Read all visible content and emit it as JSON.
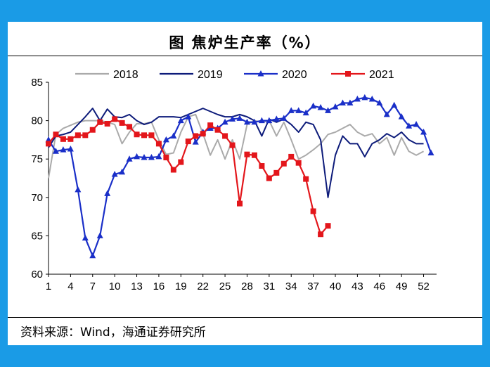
{
  "title": "图 焦炉生产率（%）",
  "source": "资料来源：Wind，海通证券研究所",
  "chart_data": {
    "type": "line",
    "title": "图 焦炉生产率（%）",
    "xlabel": "",
    "ylabel": "",
    "ylim": [
      60,
      85
    ],
    "xlim": [
      1,
      53
    ],
    "yticks": [
      60,
      65,
      70,
      75,
      80,
      85
    ],
    "xticks": [
      1,
      4,
      7,
      10,
      13,
      16,
      19,
      22,
      25,
      28,
      31,
      34,
      37,
      40,
      43,
      46,
      49,
      52
    ],
    "legend_position": "top",
    "grid": false,
    "series": [
      {
        "name": "2018",
        "color": "#aaaaaa",
        "marker": "none",
        "x": [
          1,
          2,
          3,
          4,
          5,
          6,
          7,
          8,
          9,
          10,
          11,
          12,
          13,
          14,
          15,
          16,
          17,
          18,
          19,
          20,
          21,
          22,
          23,
          24,
          25,
          26,
          27,
          28,
          29,
          30,
          31,
          32,
          33,
          34,
          35,
          36,
          37,
          38,
          39,
          40,
          41,
          42,
          43,
          44,
          45,
          46,
          47,
          48,
          49,
          50,
          51,
          52
        ],
        "values": [
          72.5,
          78.2,
          79.0,
          79.4,
          79.8,
          80.0,
          80.0,
          80.0,
          79.8,
          79.5,
          77.0,
          78.5,
          79.6,
          79.6,
          79.8,
          77.5,
          75.6,
          75.8,
          78.5,
          80.5,
          80.8,
          78.3,
          75.5,
          77.5,
          75.0,
          77.5,
          75.0,
          79.5,
          80.0,
          79.8,
          80.0,
          78.0,
          79.8,
          77.5,
          75.0,
          75.5,
          76.2,
          77.0,
          78.2,
          78.5,
          79.0,
          79.5,
          78.5,
          78.0,
          78.3,
          77.0,
          77.8,
          75.5,
          77.8,
          76.0,
          75.5,
          76.0
        ]
      },
      {
        "name": "2019",
        "color": "#0d1b7a",
        "marker": "none",
        "x": [
          1,
          2,
          3,
          4,
          5,
          6,
          7,
          8,
          9,
          10,
          11,
          12,
          13,
          14,
          15,
          16,
          17,
          18,
          19,
          20,
          21,
          22,
          23,
          24,
          25,
          26,
          27,
          28,
          29,
          30,
          31,
          32,
          33,
          34,
          35,
          36,
          37,
          38,
          39,
          40,
          41,
          42,
          43,
          44,
          45,
          46,
          47,
          48,
          49,
          50,
          51,
          52
        ],
        "values": [
          76.5,
          78.0,
          78.2,
          78.5,
          79.5,
          80.5,
          81.6,
          80.0,
          81.5,
          80.5,
          80.4,
          80.8,
          80.0,
          79.5,
          79.8,
          80.5,
          80.5,
          80.5,
          80.4,
          80.8,
          81.2,
          81.6,
          81.2,
          80.8,
          80.5,
          80.5,
          80.8,
          80.5,
          80.0,
          78.0,
          80.2,
          79.8,
          80.2,
          79.5,
          78.5,
          79.8,
          79.5,
          77.5,
          70.0,
          75.5,
          78.0,
          77.0,
          77.0,
          75.3,
          77.0,
          77.5,
          78.3,
          77.8,
          78.5,
          77.5,
          77.0,
          77.0
        ]
      },
      {
        "name": "2020",
        "color": "#1a2fc8",
        "marker": "triangle",
        "x": [
          1,
          2,
          3,
          4,
          5,
          6,
          7,
          8,
          9,
          10,
          11,
          12,
          13,
          14,
          15,
          16,
          17,
          18,
          19,
          20,
          21,
          22,
          23,
          24,
          25,
          26,
          27,
          28,
          29,
          30,
          31,
          32,
          33,
          34,
          35,
          36,
          37,
          38,
          39,
          40,
          41,
          42,
          43,
          44,
          45,
          46,
          47,
          48,
          49,
          50,
          51,
          52,
          53
        ],
        "values": [
          77.5,
          76.0,
          76.2,
          76.3,
          71.0,
          64.7,
          62.4,
          65.0,
          70.5,
          73.0,
          73.3,
          75.0,
          75.3,
          75.2,
          75.2,
          75.3,
          77.5,
          78.0,
          80.0,
          80.5,
          77.2,
          78.5,
          79.0,
          79.0,
          79.8,
          80.2,
          80.3,
          79.8,
          79.8,
          80.0,
          80.0,
          80.2,
          80.3,
          81.3,
          81.3,
          81.0,
          81.9,
          81.7,
          81.3,
          81.8,
          82.3,
          82.3,
          82.8,
          83.0,
          82.8,
          82.3,
          80.8,
          82.0,
          80.5,
          79.3,
          79.5,
          78.5,
          75.8
        ]
      },
      {
        "name": "2021",
        "color": "#e3161b",
        "marker": "square",
        "x": [
          1,
          2,
          3,
          4,
          5,
          6,
          7,
          8,
          9,
          10,
          11,
          12,
          13,
          14,
          15,
          16,
          17,
          18,
          19,
          20,
          21,
          22,
          23,
          24,
          25,
          26,
          27,
          28,
          29,
          30,
          31,
          32,
          33,
          34,
          35,
          36,
          37,
          38,
          39
        ],
        "values": [
          77.0,
          78.2,
          77.6,
          77.6,
          78.1,
          78.1,
          78.8,
          79.8,
          79.6,
          80.2,
          79.7,
          79.2,
          78.2,
          78.1,
          78.1,
          77.0,
          75.2,
          73.6,
          74.6,
          77.3,
          78.0,
          78.3,
          79.4,
          78.8,
          78.0,
          76.8,
          69.2,
          75.6,
          75.5,
          74.1,
          72.5,
          73.2,
          74.4,
          75.3,
          74.5,
          72.4,
          68.2,
          65.2,
          66.3
        ]
      }
    ]
  }
}
